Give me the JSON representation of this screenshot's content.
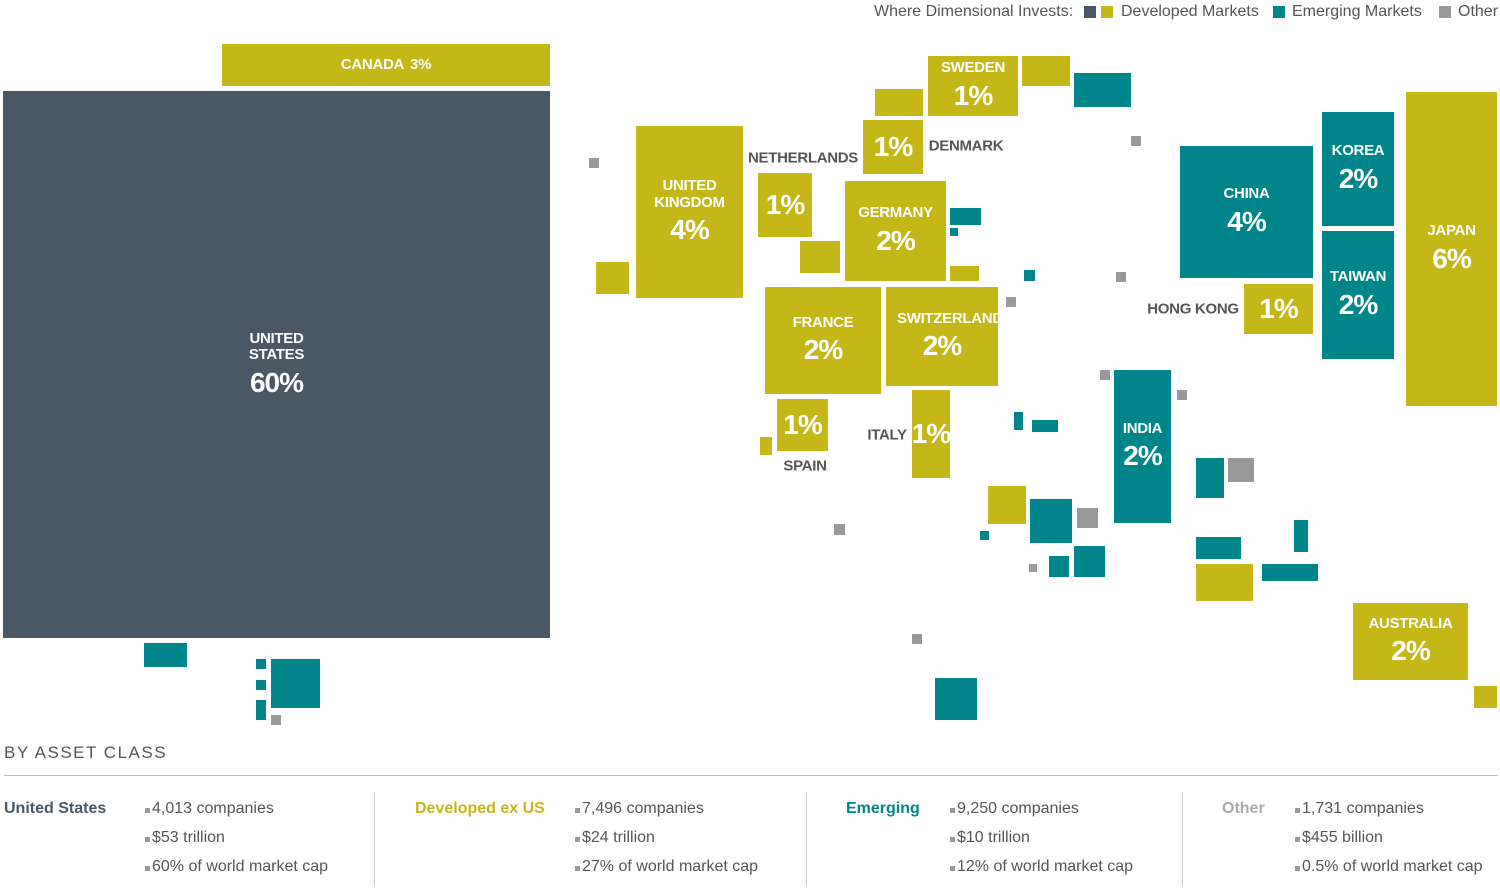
{
  "legend": {
    "title": "Where Dimensional Invests:",
    "items": [
      "Developed Markets",
      "Emerging Markets",
      "Other"
    ]
  },
  "countries": [
    {
      "name": "CANADA",
      "share": "3%"
    },
    {
      "name": "UNITED STATES",
      "share": "60%"
    },
    {
      "name": "UNITED KINGDOM",
      "share": "4%"
    },
    {
      "name": "NETHERLANDS",
      "share": "1%"
    },
    {
      "name": "GERMANY",
      "share": "2%"
    },
    {
      "name": "SWEDEN",
      "share": "1%"
    },
    {
      "name": "DENMARK",
      "share": "1%"
    },
    {
      "name": "FRANCE",
      "share": "2%"
    },
    {
      "name": "SWITZERLAND",
      "share": "2%"
    },
    {
      "name": "SPAIN",
      "share": "1%"
    },
    {
      "name": "ITALY",
      "share": "1%"
    },
    {
      "name": "CHINA",
      "share": "4%"
    },
    {
      "name": "KOREA",
      "share": "2%"
    },
    {
      "name": "TAIWAN",
      "share": "2%"
    },
    {
      "name": "HONG KONG",
      "share": "1%"
    },
    {
      "name": "JAPAN",
      "share": "6%"
    },
    {
      "name": "INDIA",
      "share": "2%"
    },
    {
      "name": "AUSTRALIA",
      "share": "2%"
    }
  ],
  "asset_classes": {
    "title": "BY ASSET CLASS",
    "groups": [
      {
        "name": "United States",
        "items": [
          "4,013 companies",
          "$53 trillion",
          "60% of world market cap"
        ]
      },
      {
        "name": "Developed ex US",
        "items": [
          "7,496 companies",
          "$24 trillion",
          "27% of world market cap"
        ]
      },
      {
        "name": "Emerging",
        "items": [
          "9,250 companies",
          "$10 trillion",
          "12% of world market cap"
        ]
      },
      {
        "name": "Other",
        "items": [
          "1,731 companies",
          "$455 billion",
          "0.5% of world market cap"
        ]
      }
    ]
  }
}
